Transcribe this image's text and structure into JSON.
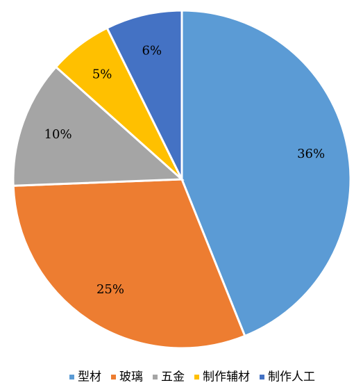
{
  "chart_data": {
    "type": "pie",
    "categories": [
      "型材",
      "玻璃",
      "五金",
      "制作辅材",
      "制作人工"
    ],
    "values": [
      36,
      25,
      10,
      5,
      6
    ],
    "value_labels": [
      "36%",
      "25%",
      "10%",
      "5%",
      "6%"
    ],
    "colors": [
      "#5b9bd5",
      "#ed7d31",
      "#a5a5a5",
      "#ffc000",
      "#4472c4"
    ],
    "legend": "bottom"
  }
}
